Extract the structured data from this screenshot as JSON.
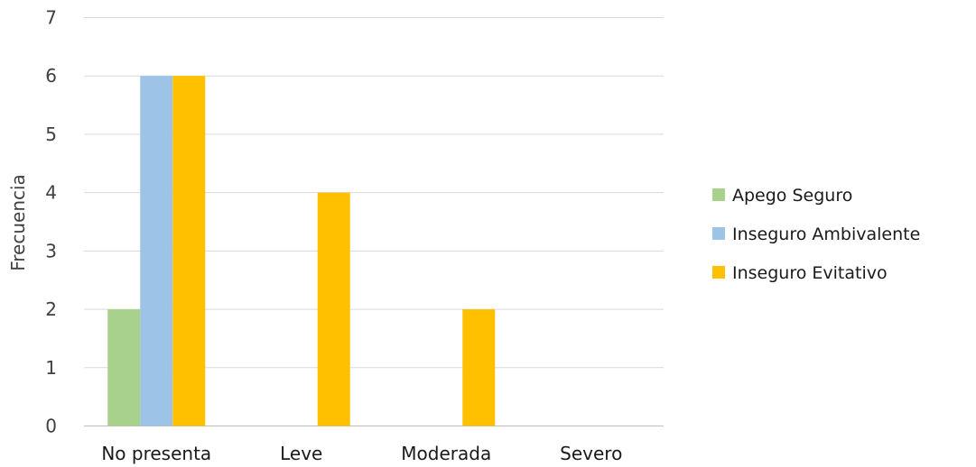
{
  "chart_data": {
    "type": "bar",
    "title": "",
    "xlabel": "",
    "ylabel": "Frecuencia",
    "ylim": [
      0,
      7
    ],
    "yticks": [
      0,
      1,
      2,
      3,
      4,
      5,
      6,
      7
    ],
    "categories": [
      "No presenta",
      "Leve",
      "Moderada",
      "Severo"
    ],
    "series": [
      {
        "name": "Apego Seguro",
        "color": "#a9d18e",
        "values": [
          2,
          0,
          0,
          0
        ]
      },
      {
        "name": "Inseguro Ambivalente",
        "color": "#9dc3e6",
        "values": [
          6,
          0,
          0,
          0
        ]
      },
      {
        "name": "Inseguro Evitativo",
        "color": "#ffc000",
        "values": [
          6,
          4,
          2,
          0
        ]
      }
    ],
    "grid": true,
    "legend_position": "right"
  }
}
